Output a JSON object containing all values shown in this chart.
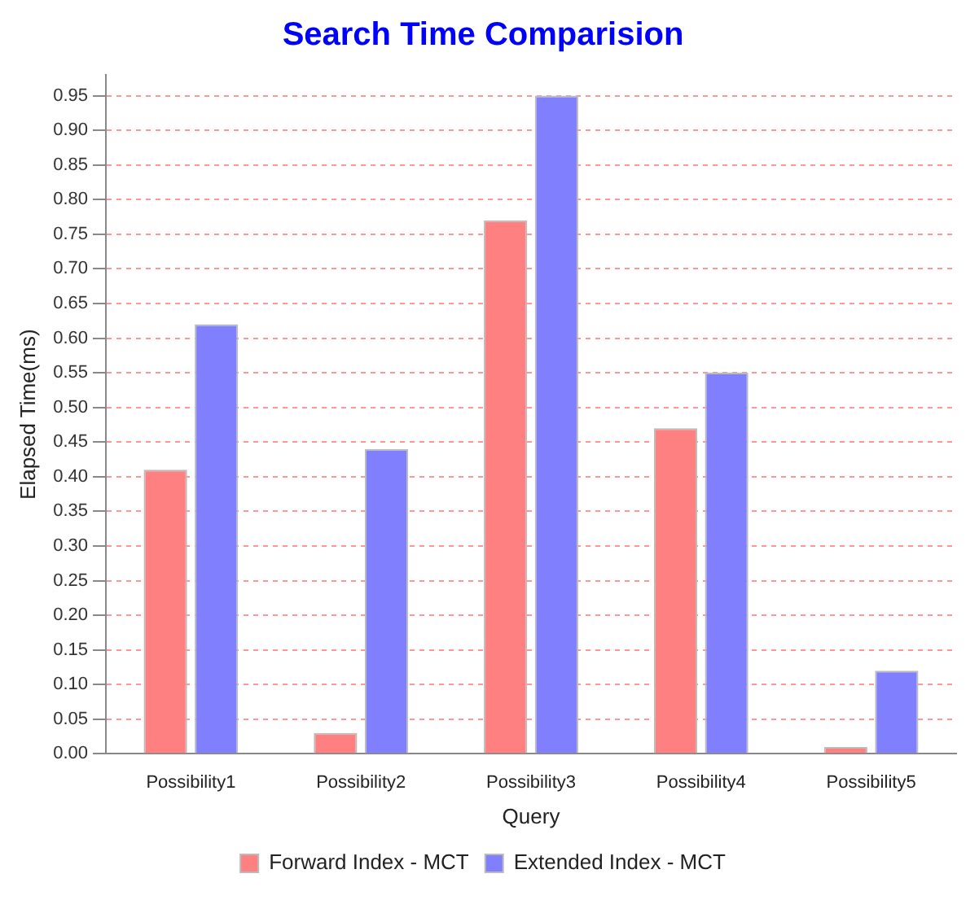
{
  "chart_data": {
    "type": "bar",
    "title": "Search Time Comparision",
    "xlabel": "Query",
    "ylabel": "Elapsed Time(ms)",
    "categories": [
      "Possibility1",
      "Possibility2",
      "Possibility3",
      "Possibility4",
      "Possibility5"
    ],
    "series": [
      {
        "name": "Forward Index - MCT",
        "color": "#ff8080",
        "values": [
          0.41,
          0.03,
          0.77,
          0.47,
          0.01
        ]
      },
      {
        "name": "Extended Index - MCT",
        "color": "#8080ff",
        "values": [
          0.62,
          0.44,
          0.95,
          0.55,
          0.12
        ]
      }
    ],
    "ylim": [
      0,
      0.98
    ],
    "yticks": [
      {
        "value": 0,
        "label": "0.00"
      },
      0.05,
      {
        "value": 0.1,
        "label": "0.10"
      },
      0.15,
      {
        "value": 0.2,
        "label": "0.20"
      },
      0.25,
      {
        "value": 0.3,
        "label": "0.30"
      },
      0.35,
      {
        "value": 0.4,
        "label": "0.40"
      },
      0.45,
      {
        "value": 0.5,
        "label": "0.50"
      },
      0.55,
      {
        "value": 0.6,
        "label": "0.60"
      },
      0.65,
      {
        "value": 0.7,
        "label": "0.70"
      },
      0.75,
      {
        "value": 0.8,
        "label": "0.80"
      },
      0.85,
      {
        "value": 0.9,
        "label": "0.90"
      },
      0.95
    ],
    "grid": "y",
    "legend": "bottom"
  }
}
